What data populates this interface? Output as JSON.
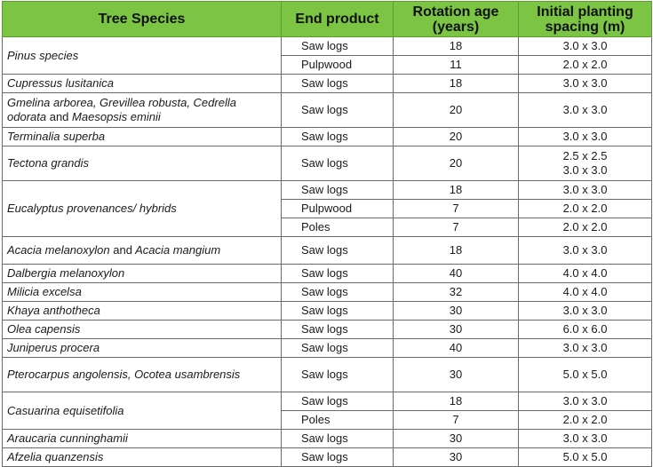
{
  "headers": {
    "species": "Tree Species",
    "end": "End product",
    "rotation": "Rotation age (years)",
    "spacing": "Initial planting spacing (m)"
  },
  "rows": {
    "r1": {
      "species": "Pinus species",
      "items": [
        {
          "end": "Saw logs",
          "age": "18",
          "spacing": "3.0 x 3.0"
        },
        {
          "end": "Pulpwood",
          "age": "11",
          "spacing": "2.0 x 2.0"
        }
      ]
    },
    "r2": {
      "species": "Cupressus lusitanica",
      "end": "Saw logs",
      "age": "18",
      "spacing": "3.0 x 3.0"
    },
    "r3": {
      "species_a": "Gmelina arborea, Grevillea robusta, Cedrella odorata",
      "species_and": "and",
      "species_b": "Maesopsis eminii",
      "end": "Saw logs",
      "age": "20",
      "spacing": "3.0 x 3.0"
    },
    "r4": {
      "species": "Terminalia superba",
      "end": "Saw logs",
      "age": "20",
      "spacing": "3.0 x 3.0"
    },
    "r5": {
      "species": "Tectona grandis",
      "end": "Saw logs",
      "age": "20",
      "spacing_a": "2.5 x 2.5",
      "spacing_b": "3.0 x 3.0"
    },
    "r6": {
      "species": "Eucalyptus provenances/ hybrids",
      "items": [
        {
          "end": "Saw logs",
          "age": "18",
          "spacing": "3.0 x 3.0"
        },
        {
          "end": "Pulpwood",
          "age": "7",
          "spacing": "2.0 x 2.0"
        },
        {
          "end": "Poles",
          "age": "7",
          "spacing": "2.0 x 2.0"
        }
      ]
    },
    "r7": {
      "species_a": "Acacia melanoxylon",
      "species_and": "and",
      "species_b": "Acacia mangium",
      "end": "Saw logs",
      "age": "18",
      "spacing": "3.0 x 3.0"
    },
    "r8": {
      "species": "Dalbergia melanoxylon",
      "end": "Saw logs",
      "age": "40",
      "spacing": "4.0 x 4.0"
    },
    "r9": {
      "species": "Milicia excelsa",
      "end": "Saw logs",
      "age": "32",
      "spacing": "4.0 x 4.0"
    },
    "r10": {
      "species": "Khaya anthotheca",
      "end": "Saw logs",
      "age": "30",
      "spacing": "3.0 x 3.0"
    },
    "r11": {
      "species": "Olea capensis",
      "end": "Saw logs",
      "age": "30",
      "spacing": "6.0 x 6.0"
    },
    "r12": {
      "species": "Juniperus procera",
      "end": "Saw logs",
      "age": "40",
      "spacing": "3.0 x 3.0"
    },
    "r13": {
      "species": "Pterocarpus angolensis, Ocotea usambrensis",
      "end": "Saw logs",
      "age": "30",
      "spacing": "5.0 x 5.0"
    },
    "r14": {
      "species": "Casuarina equisetifolia",
      "items": [
        {
          "end": "Saw logs",
          "age": "18",
          "spacing": "3.0 x 3.0"
        },
        {
          "end": "Poles",
          "age": "7",
          "spacing": "2.0 x 2.0"
        }
      ]
    },
    "r15": {
      "species": "Araucaria cunninghamii",
      "end": "Saw logs",
      "age": "30",
      "spacing": "3.0 x 3.0"
    },
    "r16": {
      "species": "Afzelia quanzensis",
      "end": "Saw logs",
      "age": "30",
      "spacing": "5.0 x 5.0"
    }
  }
}
